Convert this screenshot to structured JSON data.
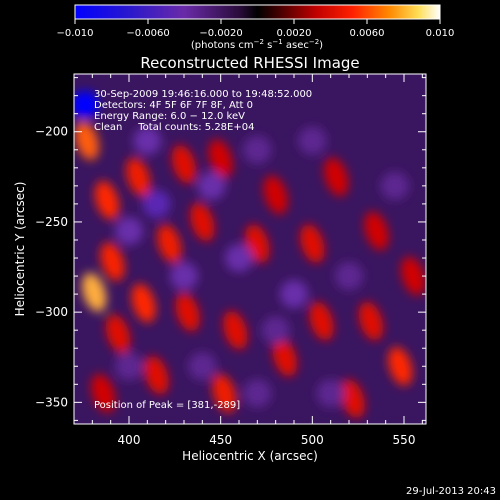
{
  "colorbar": {
    "ticks": [
      "−0.010",
      "−0.0060",
      "−0.0020",
      "0.0020",
      "0.0060",
      "0.010"
    ],
    "tick_values": [
      -0.01,
      -0.006,
      -0.002,
      0.002,
      0.006,
      0.01
    ],
    "range": [
      -0.01,
      0.01
    ],
    "units_prefix": "(photons cm",
    "units_exp1": "−2",
    "units_mid": " s",
    "units_exp2": "−1",
    "units_mid2": " asec",
    "units_exp3": "−2",
    "units_suffix": ")"
  },
  "chart_data": {
    "type": "heatmap",
    "title": "Reconstructed RHESSI Image",
    "xlabel": "Heliocentric X (arcsec)",
    "ylabel": "Heliocentric Y (arcsec)",
    "xlim": [
      370,
      562
    ],
    "ylim": [
      -362,
      -168
    ],
    "xticks": [
      400,
      450,
      500,
      550
    ],
    "xtick_labels": [
      "400",
      "450",
      "500",
      "550"
    ],
    "yticks": [
      -200,
      -250,
      -300,
      -350
    ],
    "ytick_labels": [
      "−200",
      "−250",
      "−300",
      "−350"
    ],
    "annotations": {
      "time": "30-Sep-2009 19:46:16.000 to 19:48:52.000",
      "detectors": "Detectors: 4F 5F 6F 7F 8F, Att 0",
      "energy": "Energy Range: 6.0 − 12.0 keV",
      "clean": "Clean     Total counts: 5.28E+04",
      "peak": "Position of Peak = [381,-289]"
    },
    "peak": {
      "x": 381,
      "y": -289
    },
    "blobs": [
      {
        "x": 381,
        "y": -289,
        "v": 0.0075
      },
      {
        "x": 377,
        "y": -205,
        "v": 0.006
      },
      {
        "x": 388,
        "y": -238,
        "v": 0.005
      },
      {
        "x": 391,
        "y": -272,
        "v": 0.0048
      },
      {
        "x": 394,
        "y": -312,
        "v": 0.004
      },
      {
        "x": 386,
        "y": -345,
        "v": 0.0035
      },
      {
        "x": 405,
        "y": -225,
        "v": 0.0045
      },
      {
        "x": 408,
        "y": -295,
        "v": 0.005
      },
      {
        "x": 415,
        "y": -335,
        "v": 0.004
      },
      {
        "x": 422,
        "y": -262,
        "v": 0.0045
      },
      {
        "x": 430,
        "y": -218,
        "v": 0.004
      },
      {
        "x": 432,
        "y": -300,
        "v": 0.004
      },
      {
        "x": 440,
        "y": -250,
        "v": 0.004
      },
      {
        "x": 450,
        "y": -215,
        "v": 0.0035
      },
      {
        "x": 452,
        "y": -345,
        "v": 0.0045
      },
      {
        "x": 458,
        "y": -310,
        "v": 0.004
      },
      {
        "x": 470,
        "y": -262,
        "v": 0.004
      },
      {
        "x": 480,
        "y": -235,
        "v": 0.0035
      },
      {
        "x": 485,
        "y": -325,
        "v": 0.004
      },
      {
        "x": 500,
        "y": -262,
        "v": 0.004
      },
      {
        "x": 505,
        "y": -305,
        "v": 0.004
      },
      {
        "x": 513,
        "y": -225,
        "v": 0.0035
      },
      {
        "x": 522,
        "y": -348,
        "v": 0.004
      },
      {
        "x": 532,
        "y": -305,
        "v": 0.004
      },
      {
        "x": 535,
        "y": -255,
        "v": 0.0035
      },
      {
        "x": 548,
        "y": -330,
        "v": 0.005
      },
      {
        "x": 555,
        "y": -280,
        "v": 0.0035
      },
      {
        "x": 376,
        "y": -185,
        "v": -0.01
      },
      {
        "x": 415,
        "y": -240,
        "v": -0.005
      },
      {
        "x": 400,
        "y": -255,
        "v": -0.004
      },
      {
        "x": 410,
        "y": -205,
        "v": -0.004
      },
      {
        "x": 445,
        "y": -230,
        "v": -0.004
      },
      {
        "x": 430,
        "y": -280,
        "v": -0.004
      },
      {
        "x": 460,
        "y": -270,
        "v": -0.004
      },
      {
        "x": 470,
        "y": -210,
        "v": -0.003
      },
      {
        "x": 490,
        "y": -290,
        "v": -0.004
      },
      {
        "x": 500,
        "y": -205,
        "v": -0.003
      },
      {
        "x": 520,
        "y": -280,
        "v": -0.003
      },
      {
        "x": 440,
        "y": -330,
        "v": -0.003
      },
      {
        "x": 470,
        "y": -345,
        "v": -0.003
      },
      {
        "x": 510,
        "y": -345,
        "v": -0.003
      },
      {
        "x": 545,
        "y": -230,
        "v": -0.003
      },
      {
        "x": 400,
        "y": -330,
        "v": -0.003
      },
      {
        "x": 480,
        "y": -310,
        "v": -0.003
      }
    ]
  },
  "footer": {
    "timestamp": "29-Jul-2013 20:43"
  }
}
